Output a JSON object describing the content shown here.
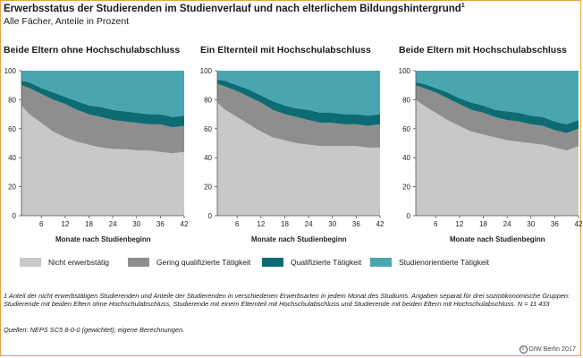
{
  "header": {
    "title": "Erwerbsstatus der Studierenden im Studienverlauf und nach elterlichem Bildungshintergrund",
    "title_footnote_mark": "1",
    "subtitle": "Alle Fächer, Anteile in Prozent"
  },
  "legend": {
    "items": [
      {
        "label": "Nicht erwerbstätig",
        "color": "#c8c8c8"
      },
      {
        "label": "Gering qualifizierte Tätigkeit",
        "color": "#8e8e8e"
      },
      {
        "label": "Qualifizierte Tätigkeit",
        "color": "#0d6c73"
      },
      {
        "label": "Studienorientierte Tätigkeit",
        "color": "#49a6b1"
      }
    ]
  },
  "footnote": "1 Anteil der nicht erwerbstätigen Studierenden und Anteile der Studierenden in verschiedenen Erwerbsarten in jedem Monat des Studiums. Angaben separat für drei sozioökonomische Gruppen: Studierende mit beiden Eltern ohne Hochschulabschluss, Studierende mit einem Elternteil mit Hochschulabschluss und Studierende mit beiden Eltern mit Hochschulabschluss. N = 11 433",
  "sources": "Quellen: NEPS SC5 8-0-0 (gewichtet); eigene Berechnungen.",
  "copyright": "DIW Berlin 2017",
  "chart_data": [
    {
      "type": "area",
      "title": "Beide Eltern ohne Hochschulabschluss",
      "xlabel": "Monate nach Studienbeginn",
      "ylabel": "",
      "xlim": [
        1,
        42
      ],
      "ylim": [
        0,
        100
      ],
      "xticks": [
        6,
        12,
        18,
        24,
        30,
        36,
        42
      ],
      "yticks": [
        0,
        20,
        40,
        60,
        80,
        100
      ],
      "stacked": true,
      "x": [
        1,
        3,
        6,
        9,
        12,
        15,
        18,
        21,
        24,
        27,
        30,
        33,
        36,
        39,
        42
      ],
      "series": [
        {
          "name": "Nicht erwerbstätig",
          "values": [
            76,
            70,
            64,
            58,
            54,
            51,
            49,
            47,
            46,
            46,
            45,
            45,
            44,
            43,
            44
          ]
        },
        {
          "name": "Gering qualifizierte Tätigkeit",
          "values": [
            14,
            18,
            20,
            22,
            23,
            22,
            21,
            21,
            20,
            19,
            19,
            18,
            19,
            18,
            18
          ]
        },
        {
          "name": "Qualifizierte Tätigkeit",
          "values": [
            3,
            4,
            4,
            5,
            5,
            6,
            6,
            7,
            7,
            7,
            7,
            7,
            7,
            7,
            7
          ]
        },
        {
          "name": "Studienorientierte Tätigkeit",
          "values": [
            7,
            8,
            12,
            15,
            18,
            21,
            24,
            25,
            27,
            28,
            29,
            30,
            30,
            32,
            31
          ]
        }
      ]
    },
    {
      "type": "area",
      "title": "Ein Elternteil mit Hochschulabschluss",
      "xlabel": "Monate nach Studienbeginn",
      "ylabel": "",
      "xlim": [
        1,
        42
      ],
      "ylim": [
        0,
        100
      ],
      "xticks": [
        6,
        12,
        18,
        24,
        30,
        36,
        42
      ],
      "yticks": [
        0,
        20,
        40,
        60,
        80,
        100
      ],
      "stacked": true,
      "x": [
        1,
        3,
        6,
        9,
        12,
        15,
        18,
        21,
        24,
        27,
        30,
        33,
        36,
        39,
        42
      ],
      "series": [
        {
          "name": "Nicht erwerbstätig",
          "values": [
            78,
            73,
            68,
            63,
            58,
            54,
            52,
            50,
            49,
            48,
            48,
            48,
            48,
            47,
            47
          ]
        },
        {
          "name": "Gering qualifizierte Tätigkeit",
          "values": [
            13,
            16,
            18,
            19,
            20,
            19,
            18,
            18,
            17,
            16,
            16,
            15,
            15,
            15,
            16
          ]
        },
        {
          "name": "Qualifizierte Tätigkeit",
          "values": [
            3,
            4,
            4,
            5,
            5,
            6,
            6,
            6,
            7,
            7,
            7,
            7,
            7,
            7,
            7
          ]
        },
        {
          "name": "Studienorientierte Tätigkeit",
          "values": [
            6,
            7,
            10,
            13,
            17,
            21,
            24,
            26,
            27,
            29,
            29,
            30,
            30,
            31,
            30
          ]
        }
      ]
    },
    {
      "type": "area",
      "title": "Beide Eltern mit Hochschulabschluss",
      "xlabel": "Monate nach Studienbeginn",
      "ylabel": "",
      "xlim": [
        1,
        42
      ],
      "ylim": [
        0,
        100
      ],
      "xticks": [
        6,
        12,
        18,
        24,
        30,
        36,
        42
      ],
      "yticks": [
        0,
        20,
        40,
        60,
        80,
        100
      ],
      "stacked": true,
      "x": [
        1,
        3,
        6,
        9,
        12,
        15,
        18,
        21,
        24,
        27,
        30,
        33,
        36,
        39,
        42
      ],
      "series": [
        {
          "name": "Nicht erwerbstätig",
          "values": [
            80,
            76,
            71,
            66,
            62,
            58,
            56,
            54,
            52,
            51,
            50,
            49,
            47,
            45,
            48
          ]
        },
        {
          "name": "Gering qualifizierte Tätigkeit",
          "values": [
            10,
            12,
            14,
            15,
            15,
            15,
            15,
            14,
            14,
            14,
            13,
            13,
            12,
            12,
            12
          ]
        },
        {
          "name": "Qualifizierte Tätigkeit",
          "values": [
            2,
            3,
            3,
            4,
            4,
            5,
            5,
            5,
            6,
            6,
            6,
            6,
            6,
            6,
            6
          ]
        },
        {
          "name": "Studienorientierte Tätigkeit",
          "values": [
            8,
            9,
            12,
            15,
            19,
            22,
            24,
            27,
            28,
            29,
            31,
            32,
            35,
            37,
            34
          ]
        }
      ]
    }
  ]
}
